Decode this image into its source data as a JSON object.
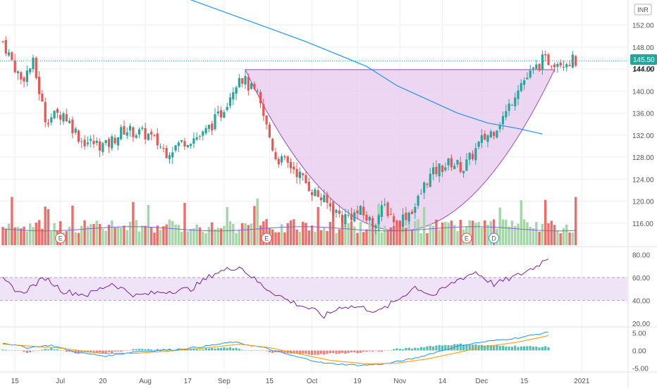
{
  "currency": "INR",
  "last_price_label": "145.50",
  "resistance_label": "144.00",
  "colors": {
    "up": "#26a69a",
    "down": "#ef5350",
    "vol_up": "#a5d6a7",
    "vol_down": "#ef5350",
    "ma_line": "#2196f3",
    "cup_fill": "#e6c8ee",
    "cup_edge": "#9c4fbf",
    "rsi_line": "#7b1fa2",
    "rsi_band": "#efe3f7",
    "vol_ma": "#7b68d6",
    "macd_line": "#2196f3",
    "signal_line": "#ff9800",
    "grid": "#eef0f3",
    "axis_text": "#555555"
  },
  "chart_data": [
    {
      "type": "candlestick",
      "name": "price",
      "ylim": [
        112,
        154
      ],
      "y_ticks": [
        "152.00",
        "148.00",
        "144.00",
        "140.00",
        "136.00",
        "132.00",
        "128.00",
        "124.00",
        "120.00",
        "116.00"
      ],
      "y_tick_values": [
        152,
        148,
        144,
        140,
        136,
        132,
        128,
        124,
        120,
        116
      ],
      "x_ticks": [
        "15",
        "Jul",
        "20",
        "Aug",
        "17",
        "Sep",
        "15",
        "Oct",
        "19",
        "Nov",
        "14",
        "Dec",
        "15",
        "2021"
      ],
      "x_tick_index": [
        4,
        19,
        33,
        47,
        61,
        73,
        88,
        102,
        117,
        131,
        145,
        158,
        172,
        191
      ],
      "n_bars": 190,
      "price_anchors": [
        [
          0,
          149
        ],
        [
          6,
          142
        ],
        [
          10,
          145
        ],
        [
          14,
          135
        ],
        [
          20,
          136
        ],
        [
          26,
          131
        ],
        [
          34,
          130
        ],
        [
          40,
          133
        ],
        [
          48,
          132
        ],
        [
          54,
          129
        ],
        [
          60,
          131
        ],
        [
          66,
          132
        ],
        [
          72,
          136
        ],
        [
          78,
          143
        ],
        [
          84,
          139
        ],
        [
          90,
          128
        ],
        [
          96,
          126
        ],
        [
          102,
          122
        ],
        [
          106,
          120
        ],
        [
          112,
          117
        ],
        [
          118,
          118
        ],
        [
          122,
          116
        ],
        [
          126,
          119
        ],
        [
          130,
          116
        ],
        [
          136,
          119
        ],
        [
          140,
          124
        ],
        [
          144,
          126
        ],
        [
          148,
          127
        ],
        [
          152,
          126
        ],
        [
          158,
          131
        ],
        [
          162,
          133
        ],
        [
          166,
          136
        ],
        [
          170,
          141
        ],
        [
          174,
          143
        ],
        [
          178,
          145.5
        ]
      ],
      "last_price": 145.5,
      "moving_average": [
        [
          60,
          157
        ],
        [
          80,
          153
        ],
        [
          100,
          149
        ],
        [
          120,
          144.5
        ],
        [
          130,
          141
        ],
        [
          140,
          138.5
        ],
        [
          150,
          136
        ],
        [
          160,
          134.2
        ],
        [
          170,
          133.2
        ],
        [
          178,
          132.2
        ]
      ],
      "cup_pattern": {
        "start_index": 80,
        "end_index": 182,
        "rim_price": 143.9,
        "bottom_price": 114.6
      },
      "volume": {
        "ylim": [
          0,
          100
        ],
        "vol_ma_level": 25
      },
      "events": [
        {
          "label": "E",
          "index": 19
        },
        {
          "label": "E",
          "index": 87
        },
        {
          "label": "E",
          "index": 153
        },
        {
          "label": "D",
          "index": 162
        }
      ]
    },
    {
      "type": "line",
      "name": "rsi",
      "ylim": [
        18,
        86
      ],
      "y_ticks": [
        "80.00",
        "60.00",
        "40.00",
        "20.00"
      ],
      "y_tick_values": [
        80,
        60,
        40,
        20
      ],
      "band": [
        40,
        60
      ],
      "values_anchors": [
        [
          0,
          58
        ],
        [
          6,
          46
        ],
        [
          14,
          60
        ],
        [
          20,
          48
        ],
        [
          28,
          45
        ],
        [
          36,
          55
        ],
        [
          44,
          44
        ],
        [
          54,
          48
        ],
        [
          62,
          50
        ],
        [
          70,
          64
        ],
        [
          78,
          70
        ],
        [
          86,
          52
        ],
        [
          94,
          40
        ],
        [
          102,
          32
        ],
        [
          106,
          26
        ],
        [
          112,
          35
        ],
        [
          118,
          34
        ],
        [
          124,
          30
        ],
        [
          130,
          40
        ],
        [
          136,
          52
        ],
        [
          142,
          44
        ],
        [
          150,
          58
        ],
        [
          156,
          65
        ],
        [
          162,
          54
        ],
        [
          170,
          62
        ],
        [
          176,
          70
        ],
        [
          180,
          78
        ]
      ]
    },
    {
      "type": "macd",
      "name": "macd",
      "ylim": [
        -5.5,
        6.5
      ],
      "y_ticks": [
        "5.00",
        "0.00",
        "-5.00"
      ],
      "y_tick_values": [
        5,
        0,
        -5
      ],
      "macd_anchors": [
        [
          0,
          2.2
        ],
        [
          8,
          0.8
        ],
        [
          16,
          1.5
        ],
        [
          24,
          -0.5
        ],
        [
          34,
          -1.6
        ],
        [
          44,
          -0.3
        ],
        [
          56,
          0.2
        ],
        [
          66,
          1.1
        ],
        [
          76,
          2.4
        ],
        [
          86,
          0.8
        ],
        [
          96,
          -1.6
        ],
        [
          106,
          -3.6
        ],
        [
          118,
          -4.2
        ],
        [
          126,
          -3.8
        ],
        [
          136,
          -2.2
        ],
        [
          144,
          -0.2
        ],
        [
          152,
          1.6
        ],
        [
          160,
          2.6
        ],
        [
          170,
          3.6
        ],
        [
          180,
          5.2
        ]
      ],
      "signal_anchors": [
        [
          0,
          1.8
        ],
        [
          10,
          1.2
        ],
        [
          20,
          0.6
        ],
        [
          32,
          -0.8
        ],
        [
          44,
          -0.8
        ],
        [
          56,
          -0.1
        ],
        [
          68,
          0.8
        ],
        [
          78,
          1.8
        ],
        [
          88,
          0.8
        ],
        [
          98,
          -1.0
        ],
        [
          108,
          -2.8
        ],
        [
          120,
          -3.8
        ],
        [
          130,
          -3.6
        ],
        [
          140,
          -2.4
        ],
        [
          150,
          -0.6
        ],
        [
          160,
          1.2
        ],
        [
          170,
          2.4
        ],
        [
          180,
          4.2
        ]
      ]
    }
  ]
}
